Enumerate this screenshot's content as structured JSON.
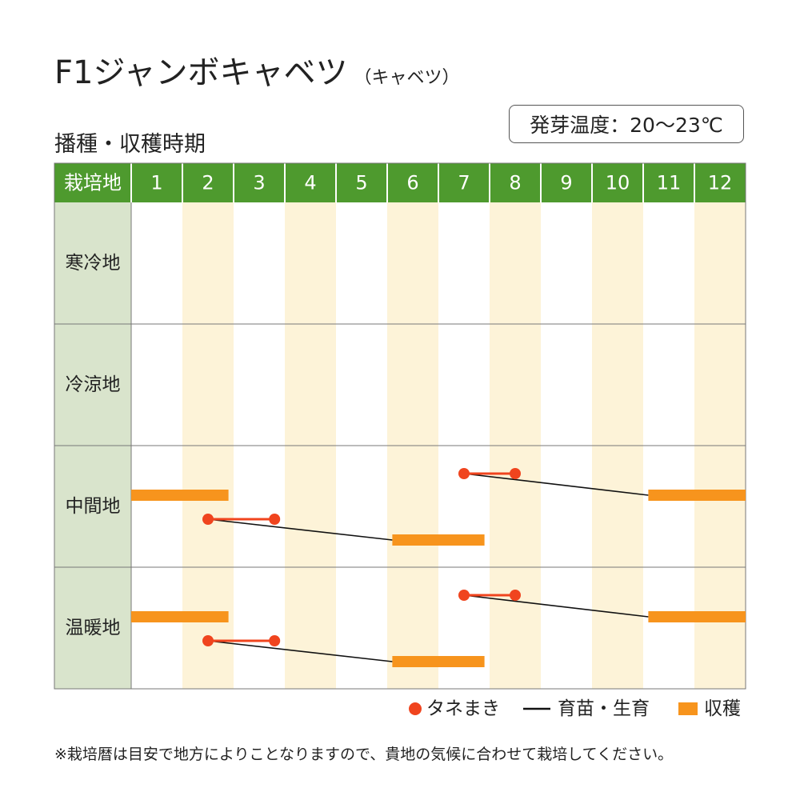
{
  "header": {
    "title": "F1ジャンボキャベツ",
    "subtitle": "（キャベツ）",
    "section_title": "播種・収穫時期",
    "germination_temp": "発芽温度：20～23℃"
  },
  "footer": {
    "note": "※栽培暦は目安で地方によりことなりますので、貴地の気候に合わせて栽培してください。"
  },
  "colors": {
    "header_green": "#4e9a2e",
    "row_label_bg": "#d9e4cc",
    "stripe": "#fdf3d8",
    "sowing": "#f0441e",
    "growing": "#111111",
    "harvest": "#f7941d",
    "grid": "#777777"
  },
  "chart_data": {
    "type": "table",
    "corner_label": "栽培地",
    "months": [
      "1",
      "2",
      "3",
      "4",
      "5",
      "6",
      "7",
      "8",
      "9",
      "10",
      "11",
      "12"
    ],
    "regions": [
      {
        "name": "寒冷地",
        "schedules": []
      },
      {
        "name": "冷涼地",
        "schedules": []
      },
      {
        "name": "中間地",
        "schedules": [
          {
            "sow_start": 7.5,
            "sow_end": 8.5,
            "grow_end": 11.1,
            "harvest_start": 11.1,
            "harvest_end": 13.0
          },
          {
            "sow_start": 2.5,
            "sow_end": 3.8,
            "grow_end": 6.1,
            "harvest_start": 6.1,
            "harvest_end": 7.9
          },
          {
            "sow_start": null,
            "sow_end": null,
            "grow_end": null,
            "harvest_start": 1.0,
            "harvest_end": 2.9
          }
        ]
      },
      {
        "name": "温暖地",
        "schedules": [
          {
            "sow_start": 7.5,
            "sow_end": 8.5,
            "grow_end": 11.1,
            "harvest_start": 11.1,
            "harvest_end": 13.0
          },
          {
            "sow_start": 2.5,
            "sow_end": 3.8,
            "grow_end": 6.1,
            "harvest_start": 6.1,
            "harvest_end": 7.9
          },
          {
            "sow_start": null,
            "sow_end": null,
            "grow_end": null,
            "harvest_start": 1.0,
            "harvest_end": 2.9
          }
        ]
      }
    ],
    "legend": [
      {
        "key": "sowing",
        "label": "タネまき"
      },
      {
        "key": "growing",
        "label": "育苗・生育"
      },
      {
        "key": "harvest",
        "label": "収穫"
      }
    ]
  }
}
